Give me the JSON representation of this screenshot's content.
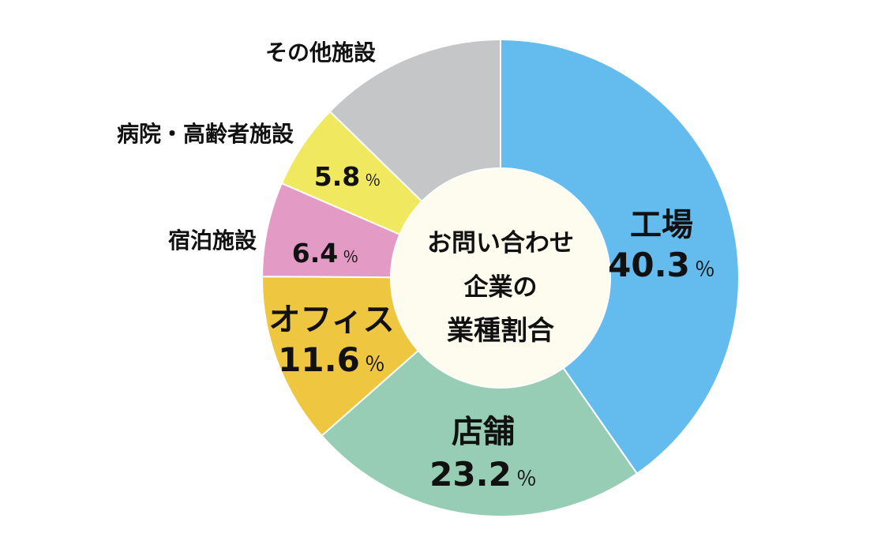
{
  "chart_data": {
    "type": "pie",
    "title": "お問い合わせ企業の業種割合",
    "center_lines": [
      "お問い合わせ",
      "企業の",
      "業種割合"
    ],
    "unit": "％",
    "slices": [
      {
        "label": "工場",
        "value": 40.3,
        "value_text": "40.3",
        "color": "#63BBEE"
      },
      {
        "label": "店舗",
        "value": 23.2,
        "value_text": "23.2",
        "color": "#97CDB5"
      },
      {
        "label": "オフィス",
        "value": 11.6,
        "value_text": "11.6",
        "color": "#EEC63F"
      },
      {
        "label": "宿泊施設",
        "value": 6.4,
        "value_text": "6.4",
        "color": "#E39AC4"
      },
      {
        "label": "病院・高齢者施設",
        "value": 5.8,
        "value_text": "5.8",
        "color": "#F0E960"
      },
      {
        "label": "その他施設",
        "value": 12.7,
        "value_text": "",
        "color": "#C5C6C8"
      }
    ],
    "center_color": "#FDFCEE"
  }
}
